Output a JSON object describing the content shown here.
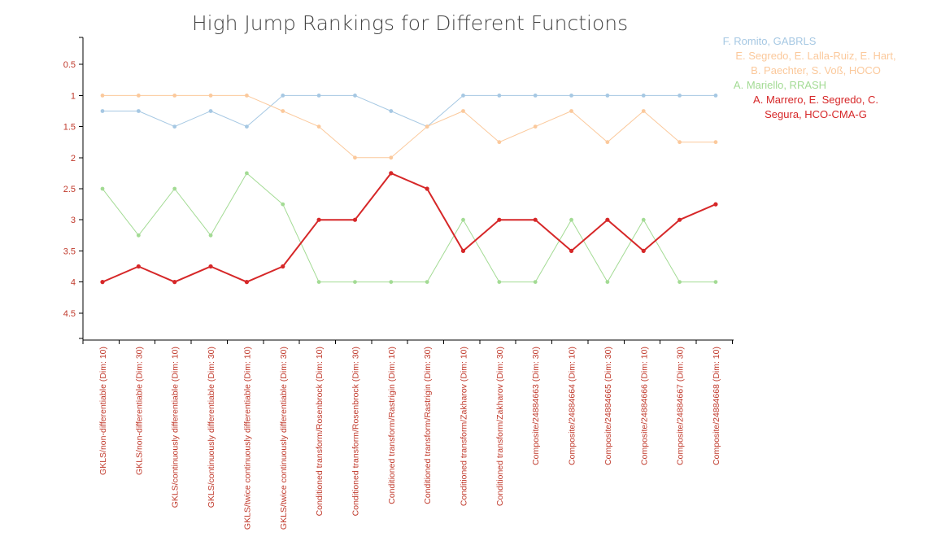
{
  "chart_data": {
    "type": "line",
    "title": "High Jump Rankings for Different Functions",
    "xlabel": "",
    "ylabel": "",
    "y_ticks": [
      "0.5",
      "1",
      "1.5",
      "2",
      "2.5",
      "3",
      "3.5",
      "4",
      "4.5"
    ],
    "y_tick_values": [
      0.5,
      1,
      1.5,
      2,
      2.5,
      3,
      3.5,
      4,
      4.5
    ],
    "y_range_top_to_bottom": [
      0,
      4.9
    ],
    "y_inverted": true,
    "grid": false,
    "legend_position": "top-right",
    "categories": [
      "GKLS/non-differentiable (Dim: 10)",
      "GKLS/non-differentiable (Dim: 30)",
      "GKLS/continuously differentiable (Dim: 10)",
      "GKLS/continuously differentiable (Dim: 30)",
      "GKLS/twice continuously differentiable (Dim: 10)",
      "GKLS/twice continuously differentiable (Dim: 30)",
      "Conditioned transform/Rosenbrock (Dim: 10)",
      "Conditioned transform/Rosenbrock (Dim: 30)",
      "Conditioned transform/Rastrigin (Dim: 10)",
      "Conditioned transform/Rastrigin (Dim: 30)",
      "Conditioned transform/Zakharov (Dim: 10)",
      "Conditioned transform/Zakharov (Dim: 30)",
      "Composite/24884663 (Dim: 30)",
      "Composite/24884664 (Dim: 10)",
      "Composite/24884665 (Dim: 30)",
      "Composite/24884666 (Dim: 10)",
      "Composite/24884667 (Dim: 30)",
      "Composite/24884668 (Dim: 10)"
    ],
    "series": [
      {
        "name": "F. Romito, GABRLS",
        "color": "#a6c8e3",
        "highlight": false,
        "values": [
          1.25,
          1.25,
          1.5,
          1.25,
          1.5,
          1,
          1,
          1,
          1.25,
          1.5,
          1,
          1,
          1,
          1,
          1,
          1,
          1,
          1
        ]
      },
      {
        "name": "E. Segredo, E. Lalla-Ruiz, E. Hart, B. Paechter, S. Voß, HOCO",
        "color": "#fbc99c",
        "highlight": false,
        "values": [
          1,
          1,
          1,
          1,
          1,
          1.25,
          1.5,
          2,
          2,
          1.5,
          1.25,
          1.75,
          1.5,
          1.25,
          1.75,
          1.25,
          1.75,
          1.75
        ]
      },
      {
        "name": "A. Mariello, RRASH",
        "color": "#a3db94",
        "highlight": false,
        "values": [
          2.5,
          3.25,
          2.5,
          3.25,
          2.25,
          2.75,
          4,
          4,
          4,
          4,
          3,
          4,
          4,
          3,
          4,
          3,
          4,
          4
        ]
      },
      {
        "name": "A. Marrero, E. Segredo, C. Segura, HCO-CMA-G",
        "color": "#d62728",
        "highlight": true,
        "values": [
          4,
          3.75,
          4,
          3.75,
          4,
          3.75,
          3,
          3,
          2.25,
          2.5,
          3.5,
          3,
          3,
          3.5,
          3,
          3.5,
          3,
          2.75
        ]
      }
    ]
  },
  "legend": {
    "items": [
      {
        "lines": [
          "F. Romito, GABRLS"
        ],
        "color": "#a6c8e3"
      },
      {
        "lines": [
          "E. Segredo, E. Lalla-Ruiz, E. Hart,",
          "B. Paechter, S. Voß, HOCO"
        ],
        "color": "#fbc99c"
      },
      {
        "lines": [
          "A. Mariello, RRASH"
        ],
        "color": "#a3db94"
      },
      {
        "lines": [
          "A. Marrero, E. Segredo, C.",
          "Segura, HCO-CMA-G"
        ],
        "color": "#d62728"
      }
    ]
  }
}
